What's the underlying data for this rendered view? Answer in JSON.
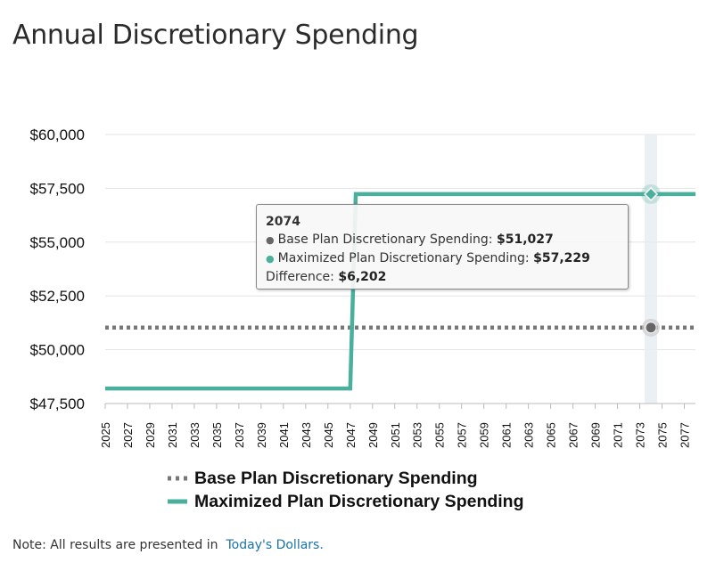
{
  "title": "Annual Discretionary Spending",
  "chart_data": {
    "type": "line",
    "x": [
      2025,
      2027,
      2029,
      2031,
      2033,
      2035,
      2037,
      2039,
      2041,
      2043,
      2045,
      2047,
      2049,
      2051,
      2053,
      2055,
      2057,
      2059,
      2061,
      2063,
      2065,
      2067,
      2069,
      2071,
      2073,
      2075,
      2077
    ],
    "x_range": [
      2025,
      2078
    ],
    "y_ticks": [
      "$60,000",
      "$57,500",
      "$55,000",
      "$52,500",
      "$50,000",
      "$47,500"
    ],
    "ylim": [
      47500,
      60000
    ],
    "series": [
      {
        "name": "Base Plan Discretionary Spending",
        "style": "dotted",
        "color": "#777777",
        "points": [
          [
            2025,
            51027
          ],
          [
            2078,
            51027
          ]
        ]
      },
      {
        "name": "Maximized Plan Discretionary Spending",
        "style": "solid",
        "color": "#4aaf9c",
        "points": [
          [
            2025,
            48200
          ],
          [
            2047,
            48200
          ],
          [
            2047.5,
            57229
          ],
          [
            2078,
            57229
          ]
        ]
      }
    ],
    "highlight_year": 2074
  },
  "tooltip": {
    "year": "2074",
    "base_label": "Base Plan Discretionary Spending:",
    "base_value": "$51,027",
    "max_label": "Maximized Plan Discretionary Spending:",
    "max_value": "$57,229",
    "diff_label": "Difference:",
    "diff_value": "$6,202"
  },
  "legend": {
    "base_label": "Base Plan Discretionary Spending",
    "max_label": "Maximized Plan Discretionary Spending"
  },
  "note": {
    "text": "Note: All results are presented in",
    "link": "Today's Dollars."
  }
}
